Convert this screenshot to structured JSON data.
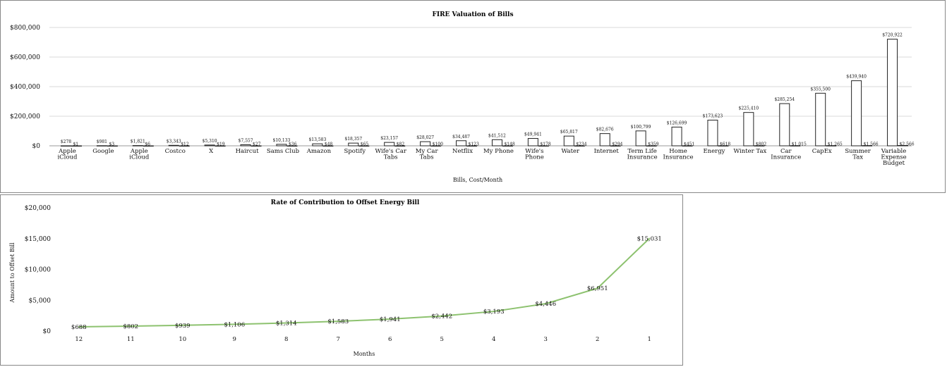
{
  "chart_data": [
    {
      "type": "bar",
      "title": "FIRE Valuation of Bills",
      "xlabel": "Bills, Cost/Month",
      "ylabel": "",
      "ylim": [
        0,
        800000
      ],
      "yticks": [
        "$0",
        "$200,000",
        "$400,000",
        "$600,000",
        "$800,000"
      ],
      "ytick_values": [
        0,
        200000,
        400000,
        600000,
        800000
      ],
      "grid": true,
      "categories": [
        "Apple iCloud",
        "Google",
        "Apple iCloud",
        "Costco",
        "X",
        "Haircut",
        "Sams Club",
        "Amazon",
        "Spotify",
        "Wife's Car Tabs",
        "My Car Tabs",
        "Netflix",
        "My Phone",
        "Wife's Phone",
        "Water",
        "Internet",
        "Term Life Insurance",
        "Home Insurance",
        "Energy",
        "Winter Tax",
        "Car Insurance",
        "CapEx",
        "Summer Tax",
        "Variable Expense Budget"
      ],
      "category_lines": [
        [
          "Apple",
          "iCloud"
        ],
        [
          "Google"
        ],
        [
          "Apple",
          "iCloud"
        ],
        [
          "Costco"
        ],
        [
          "X"
        ],
        [
          "Haircut"
        ],
        [
          "Sams Club"
        ],
        [
          "Amazon"
        ],
        [
          "Spotify"
        ],
        [
          "Wife's Car",
          "Tabs"
        ],
        [
          "My Car",
          "Tabs"
        ],
        [
          "Netflix"
        ],
        [
          "My Phone"
        ],
        [
          "Wife's",
          "Phone"
        ],
        [
          "Water"
        ],
        [
          "Internet"
        ],
        [
          "Term Life",
          "Insurance"
        ],
        [
          "Home",
          "Insurance"
        ],
        [
          "Energy"
        ],
        [
          "Winter Tax"
        ],
        [
          "Car",
          "Insurance"
        ],
        [
          "CapEx"
        ],
        [
          "Summer",
          "Tax"
        ],
        [
          "Variable",
          "Expense",
          "Budget"
        ]
      ],
      "series": [
        {
          "values": [
            278,
            981,
            1821,
            3343,
            5310,
            7557,
            10133,
            13583,
            18357,
            23157,
            28027,
            34487,
            41512,
            49941,
            65817,
            82676,
            100799,
            126699,
            173623,
            225410,
            285254,
            355500,
            439940,
            720922
          ],
          "labels": [
            "$278",
            "$981",
            "$1,821",
            "$3,343",
            "$5,310",
            "$7,557",
            "$10,133",
            "$13,583",
            "$18,357",
            "$23,157",
            "$28,027",
            "$34,487",
            "$41,512",
            "$49,941",
            "$65,817",
            "$82,676",
            "$100,799",
            "$126,699",
            "$173,623",
            "$225,410",
            "$285,254",
            "$355,500",
            "$439,940",
            "$720,922"
          ]
        },
        {
          "values": [
            1,
            3,
            6,
            12,
            19,
            27,
            36,
            48,
            65,
            82,
            100,
            123,
            148,
            178,
            234,
            294,
            359,
            451,
            618,
            802,
            1015,
            1265,
            1566,
            2566
          ],
          "labels": [
            "$1",
            "$3",
            "$6",
            "$12",
            "$19",
            "$27",
            "$36",
            "$48",
            "$65",
            "$82",
            "$100",
            "$123",
            "$148",
            "$178",
            "$234",
            "$294",
            "$359",
            "$451",
            "$618",
            "$802",
            "$1,015",
            "$1,265",
            "$1,566",
            "$2,566"
          ]
        }
      ]
    },
    {
      "type": "line",
      "title": "Rate of Contribution to Offset Energy Bill",
      "xlabel": "Months",
      "ylabel": "Amount to Offset Bill",
      "ylim": [
        0,
        20000
      ],
      "yticks": [
        "$0",
        "$5,000",
        "$10,000",
        "$15,000",
        "$20,000"
      ],
      "ytick_values": [
        0,
        5000,
        10000,
        15000,
        20000
      ],
      "grid": false,
      "categories": [
        "12",
        "11",
        "10",
        "9",
        "8",
        "7",
        "6",
        "5",
        "4",
        "3",
        "2",
        "1"
      ],
      "color": "#8dc26f",
      "series": [
        {
          "values": [
            688,
            802,
            939,
            1106,
            1314,
            1583,
            1941,
            2442,
            3193,
            4446,
            6951,
            15031
          ],
          "labels": [
            "$688",
            "$802",
            "$939",
            "$1,106",
            "$1,314",
            "$1,583",
            "$1,941",
            "$2,442",
            "$3,193",
            "$4,446",
            "$6,951",
            "$15,031"
          ]
        }
      ]
    }
  ]
}
